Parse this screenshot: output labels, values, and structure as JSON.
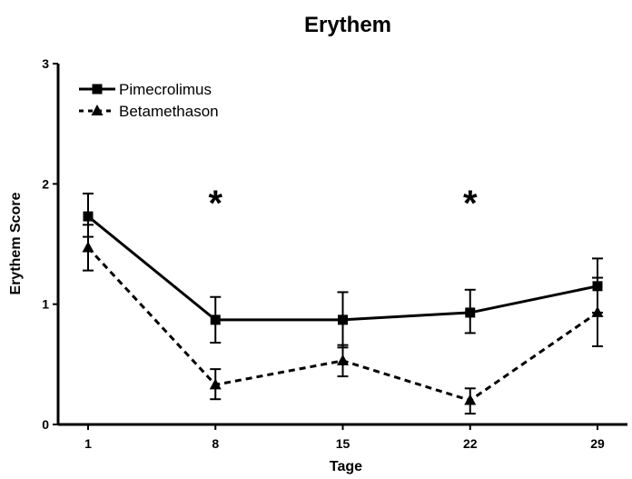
{
  "chart_data": {
    "type": "line",
    "title": "Erythem",
    "xlabel": "Tage",
    "ylabel": "Erythem Score",
    "x": [
      1,
      8,
      15,
      22,
      29
    ],
    "xticks": [
      "1",
      "8",
      "15",
      "22",
      "29"
    ],
    "yticks": [
      "0",
      "1",
      "2",
      "3"
    ],
    "ylim": [
      0,
      3
    ],
    "grid": false,
    "legend_position": "top-left",
    "series": [
      {
        "name": "Pimecrolimus",
        "marker": "square",
        "line_style": "solid",
        "color": "#000000",
        "values": [
          1.73,
          0.87,
          0.87,
          0.93,
          1.15
        ],
        "error_upper": [
          1.92,
          1.06,
          1.1,
          1.12,
          1.38
        ],
        "error_lower": [
          1.56,
          0.68,
          0.64,
          0.76,
          0.93
        ]
      },
      {
        "name": "Betamethason",
        "marker": "triangle",
        "line_style": "dotted",
        "color": "#000000",
        "values": [
          1.47,
          0.33,
          0.53,
          0.2,
          0.93
        ],
        "error_upper": [
          1.66,
          0.46,
          0.66,
          0.3,
          1.22
        ],
        "error_lower": [
          1.28,
          0.21,
          0.4,
          0.09,
          0.65
        ]
      }
    ],
    "annotations": [
      {
        "x": 8,
        "text": "*"
      },
      {
        "x": 22,
        "text": "*"
      }
    ]
  }
}
